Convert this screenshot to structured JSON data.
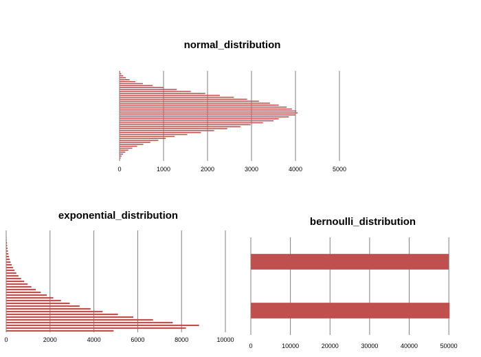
{
  "colors": {
    "bar": "#c0504d",
    "grid": "#7f7f7f",
    "axis": "#7f7f7f"
  },
  "chart_data": [
    {
      "type": "bar",
      "orientation": "horizontal",
      "title": "normal_distribution",
      "xlim": [
        0,
        5000
      ],
      "xticks": [
        "0",
        "1000",
        "2000",
        "3000",
        "4000",
        "5000"
      ],
      "grid": true,
      "legend": "none",
      "values": [
        15,
        40,
        80,
        140,
        230,
        360,
        530,
        750,
        1000,
        1300,
        1620,
        1950,
        2280,
        2600,
        2900,
        3170,
        3420,
        3620,
        3800,
        3920,
        4020,
        4050,
        4000,
        3850,
        3620,
        3500,
        3260,
        2980,
        2750,
        2450,
        2150,
        1850,
        1540,
        1250,
        1050,
        880,
        700,
        540,
        400,
        290,
        200,
        130,
        80,
        45,
        25,
        12
      ]
    },
    {
      "type": "bar",
      "orientation": "horizontal",
      "title": "exponential_distribution",
      "xlim": [
        0,
        10000
      ],
      "xticks": [
        "0",
        "2000",
        "4000",
        "6000",
        "8000",
        "10000"
      ],
      "grid": true,
      "legend": "none",
      "values": [
        8,
        12,
        18,
        25,
        35,
        45,
        60,
        80,
        100,
        130,
        160,
        200,
        250,
        310,
        380,
        460,
        560,
        680,
        820,
        980,
        1150,
        1350,
        1580,
        1850,
        2150,
        2500,
        2900,
        3350,
        3850,
        4400,
        5100,
        5800,
        6700,
        7600,
        8800,
        8200,
        4900
      ]
    },
    {
      "type": "bar",
      "orientation": "horizontal",
      "title": "bernoulli_distribution",
      "xlim": [
        0,
        55000
      ],
      "xticks": [
        "0",
        "10000",
        "20000",
        "30000",
        "40000",
        "50000"
      ],
      "grid": true,
      "legend": "none",
      "values": [
        50000,
        50200
      ]
    }
  ]
}
